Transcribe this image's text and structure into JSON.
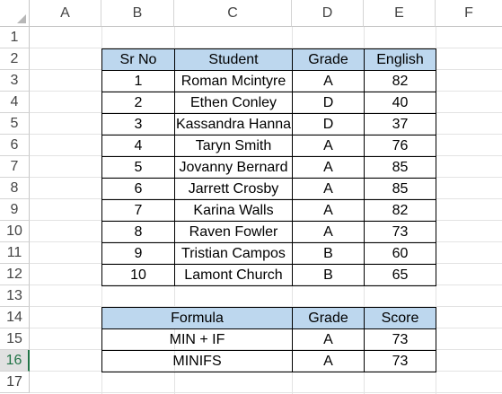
{
  "columns": [
    "A",
    "B",
    "C",
    "D",
    "E",
    "F"
  ],
  "rows": [
    "1",
    "2",
    "3",
    "4",
    "5",
    "6",
    "7",
    "8",
    "9",
    "10",
    "11",
    "12",
    "13",
    "14",
    "15",
    "16",
    "17"
  ],
  "active_row": "16",
  "student_table": {
    "headers": [
      "Sr No",
      "Student",
      "Grade",
      "English"
    ],
    "rows": [
      [
        "1",
        "Roman Mcintyre",
        "A",
        "82"
      ],
      [
        "2",
        "Ethen Conley",
        "D",
        "40"
      ],
      [
        "3",
        "Kassandra Hanna",
        "D",
        "37"
      ],
      [
        "4",
        "Taryn Smith",
        "A",
        "76"
      ],
      [
        "5",
        "Jovanny Bernard",
        "A",
        "85"
      ],
      [
        "6",
        "Jarrett Crosby",
        "A",
        "85"
      ],
      [
        "7",
        "Karina Walls",
        "A",
        "82"
      ],
      [
        "8",
        "Raven Fowler",
        "A",
        "73"
      ],
      [
        "9",
        "Tristian Campos",
        "B",
        "60"
      ],
      [
        "10",
        "Lamont Church",
        "B",
        "65"
      ]
    ]
  },
  "result_table": {
    "headers": [
      "Formula",
      "Grade",
      "Score"
    ],
    "rows": [
      [
        "MIN + IF",
        "A",
        "73"
      ],
      [
        "MINIFS",
        "A",
        "73"
      ]
    ]
  },
  "colors": {
    "header_fill": "#bdd7ee",
    "active_row_accent": "#217346"
  }
}
